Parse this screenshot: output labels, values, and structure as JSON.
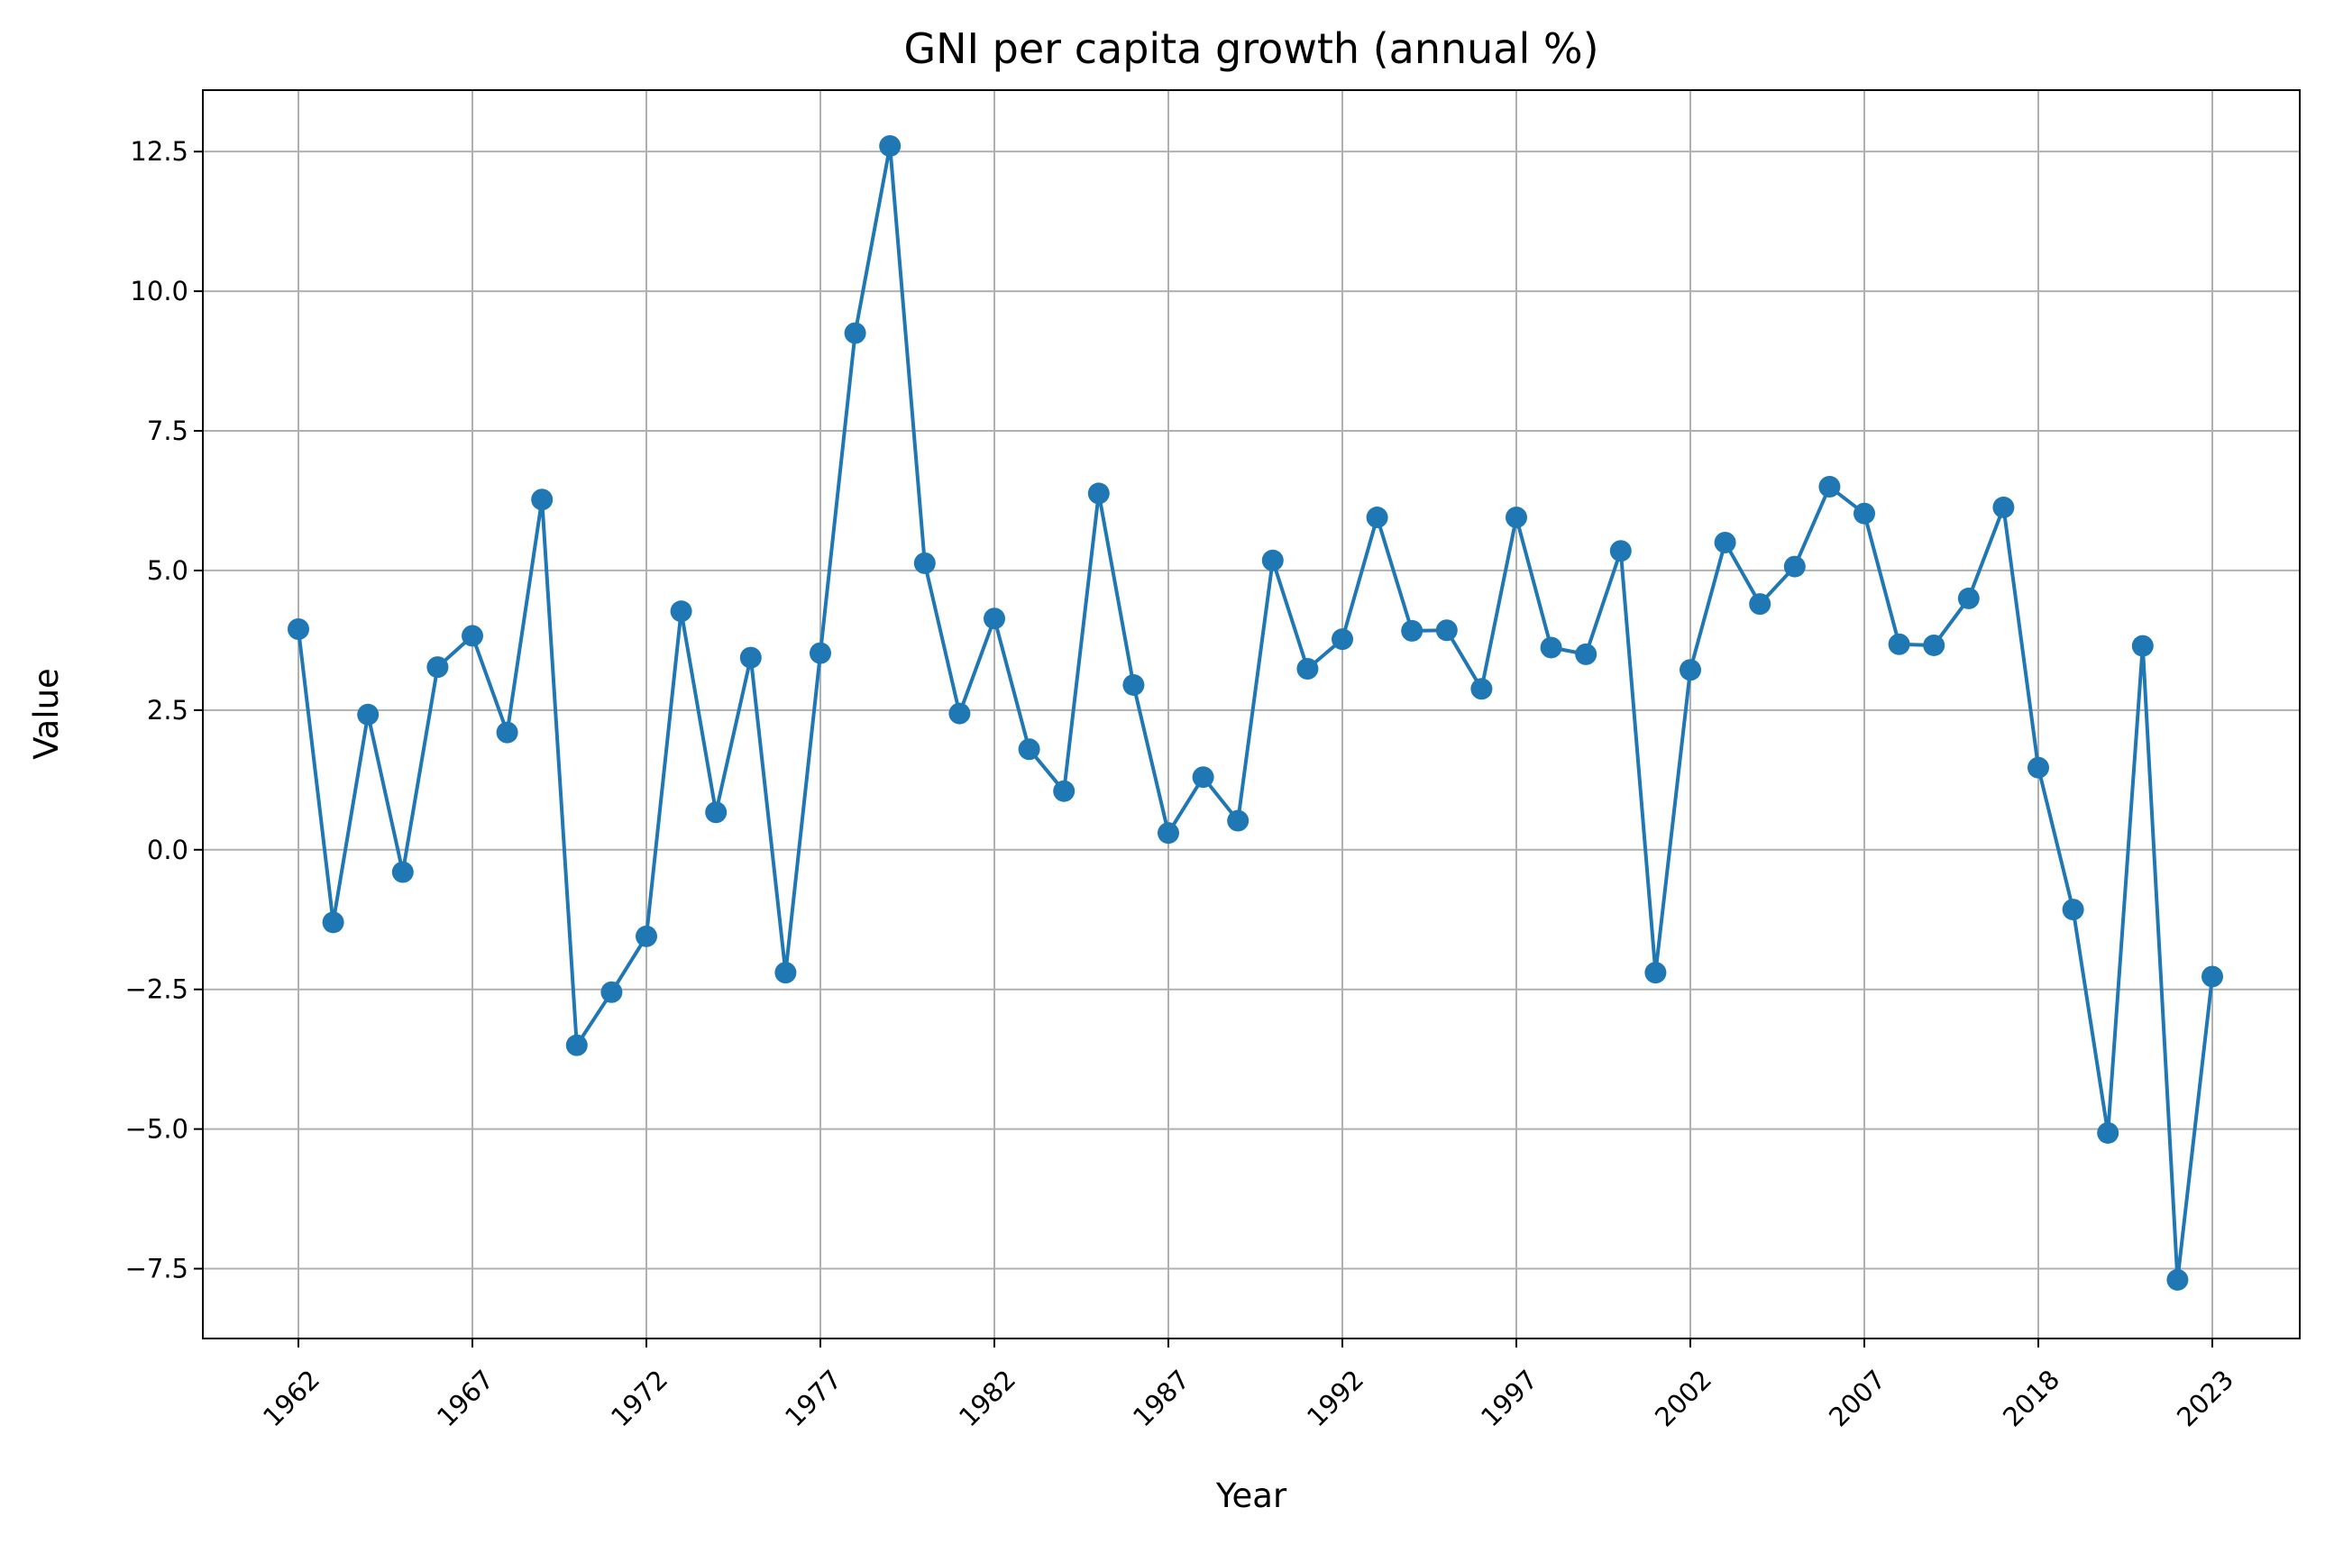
{
  "chart_data": {
    "type": "line",
    "title": "GNI per capita growth (annual %)",
    "xlabel": "Year",
    "ylabel": "Value",
    "ylim": [
      -8.75,
      13.6
    ],
    "yticks": [
      -7.5,
      -5.0,
      -2.5,
      0.0,
      2.5,
      5.0,
      7.5,
      10.0,
      12.5
    ],
    "ytick_labels": [
      "−7.5",
      "−5.0",
      "−2.5",
      "0.0",
      "2.5",
      "5.0",
      "7.5",
      "10.0",
      "12.5"
    ],
    "xtick_labels": [
      "1962",
      "1967",
      "1972",
      "1977",
      "1982",
      "1987",
      "1992",
      "1997",
      "2002",
      "2007",
      "2018",
      "2023"
    ],
    "grid": true,
    "line_color": "#1f77b4",
    "x": [
      "1962",
      "1963",
      "1964",
      "1965",
      "1966",
      "1967",
      "1968",
      "1969",
      "1970",
      "1971",
      "1972",
      "1973",
      "1974",
      "1975",
      "1976",
      "1977",
      "1978",
      "1979",
      "1980",
      "1981",
      "1982",
      "1983",
      "1984",
      "1985",
      "1986",
      "1987",
      "1988",
      "1989",
      "1990",
      "1991",
      "1992",
      "1993",
      "1994",
      "1995",
      "1996",
      "1997",
      "1998",
      "1999",
      "2000",
      "2001",
      "2002",
      "2003",
      "2004",
      "2005",
      "2006",
      "2007",
      "2008",
      "2009",
      "2010",
      "2011",
      "2018",
      "2019",
      "2020",
      "2021",
      "2022",
      "2023"
    ],
    "values": [
      3.95,
      -1.3,
      2.42,
      -0.4,
      3.27,
      3.83,
      2.1,
      6.27,
      -3.5,
      -2.55,
      -1.55,
      4.27,
      0.67,
      3.44,
      -2.2,
      3.52,
      9.25,
      12.6,
      5.13,
      2.44,
      4.14,
      1.8,
      1.05,
      6.38,
      2.95,
      0.3,
      1.3,
      0.52,
      5.18,
      3.24,
      3.77,
      5.95,
      3.92,
      3.93,
      2.88,
      5.95,
      3.62,
      3.5,
      5.35,
      -2.2,
      3.22,
      5.5,
      4.4,
      5.07,
      6.5,
      6.02,
      3.68,
      3.66,
      4.5,
      6.13,
      1.47,
      -1.07,
      -5.07,
      3.65,
      -7.7,
      -2.27
    ]
  }
}
